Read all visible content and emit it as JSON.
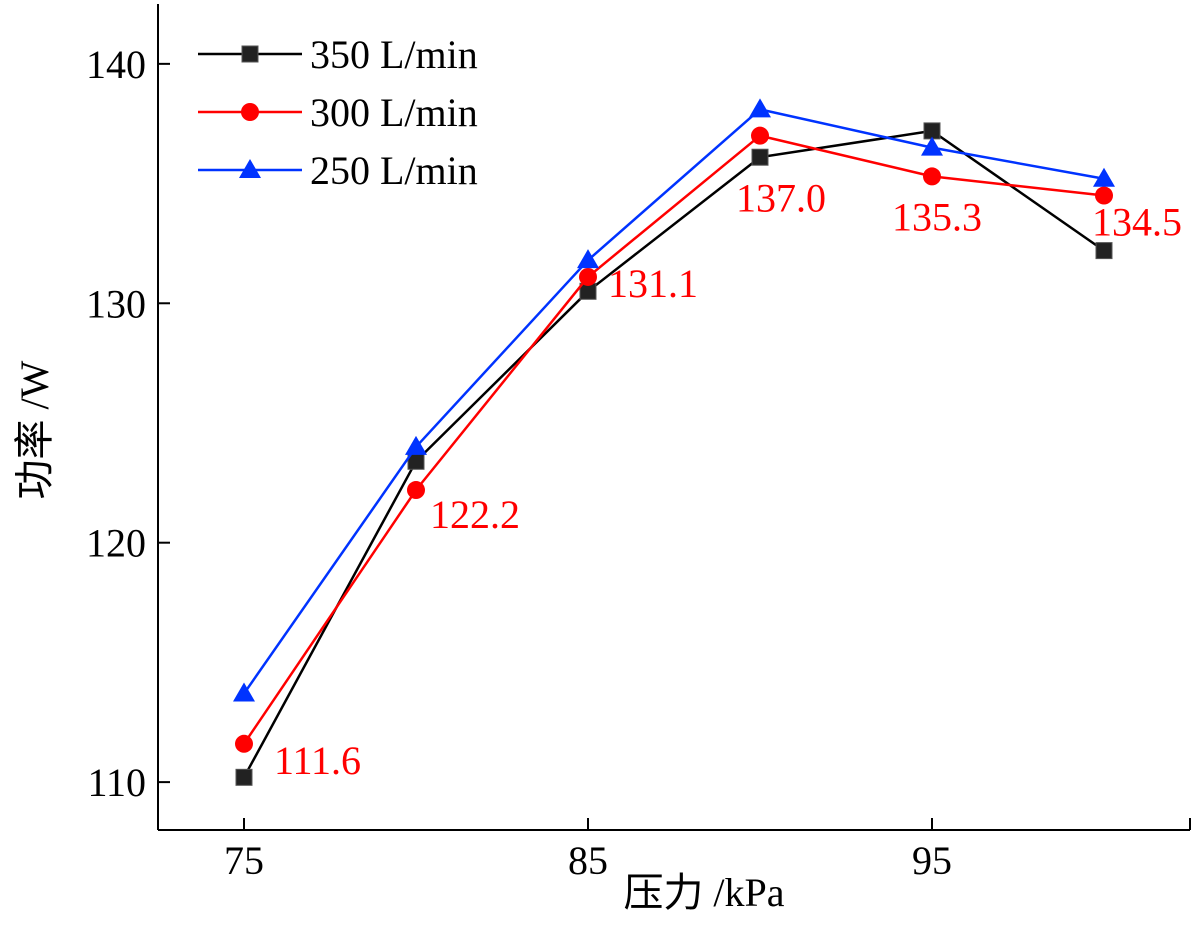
{
  "chart_data": {
    "type": "line",
    "xlabel": "压力 /kPa",
    "ylabel": "功率 /W",
    "xlim": [
      72.5,
      102.5
    ],
    "ylim": [
      108,
      142.5
    ],
    "x_ticks": [
      75,
      85,
      95
    ],
    "y_ticks": [
      110,
      120,
      130,
      140
    ],
    "x_tick_labels": [
      "75",
      "85",
      "95"
    ],
    "y_tick_labels": [
      "110",
      "120",
      "130",
      "140"
    ],
    "x": [
      75,
      80,
      85,
      90,
      95,
      100
    ],
    "series": [
      {
        "name": "350 L/min",
        "color": "#000000",
        "marker": "square",
        "values": [
          110.2,
          123.4,
          130.5,
          136.1,
          137.2,
          132.2
        ]
      },
      {
        "name": "300 L/min",
        "color": "#ff0000",
        "marker": "circle",
        "values": [
          111.6,
          122.2,
          131.1,
          137.0,
          135.3,
          134.5
        ]
      },
      {
        "name": "250 L/min",
        "color": "#0033ff",
        "marker": "triangle",
        "values": [
          113.7,
          124.0,
          131.8,
          138.1,
          136.5,
          135.2
        ]
      }
    ],
    "data_labels": {
      "color": "#ff0000",
      "texts": [
        "111.6",
        "122.2",
        "131.1",
        "137.0",
        "135.3",
        "134.5"
      ],
      "x": [
        75,
        80,
        85,
        90,
        95,
        100
      ],
      "y": [
        111.6,
        122.2,
        131.1,
        137.0,
        135.3,
        134.5
      ]
    },
    "legend_position": "top-left",
    "grid": false
  }
}
